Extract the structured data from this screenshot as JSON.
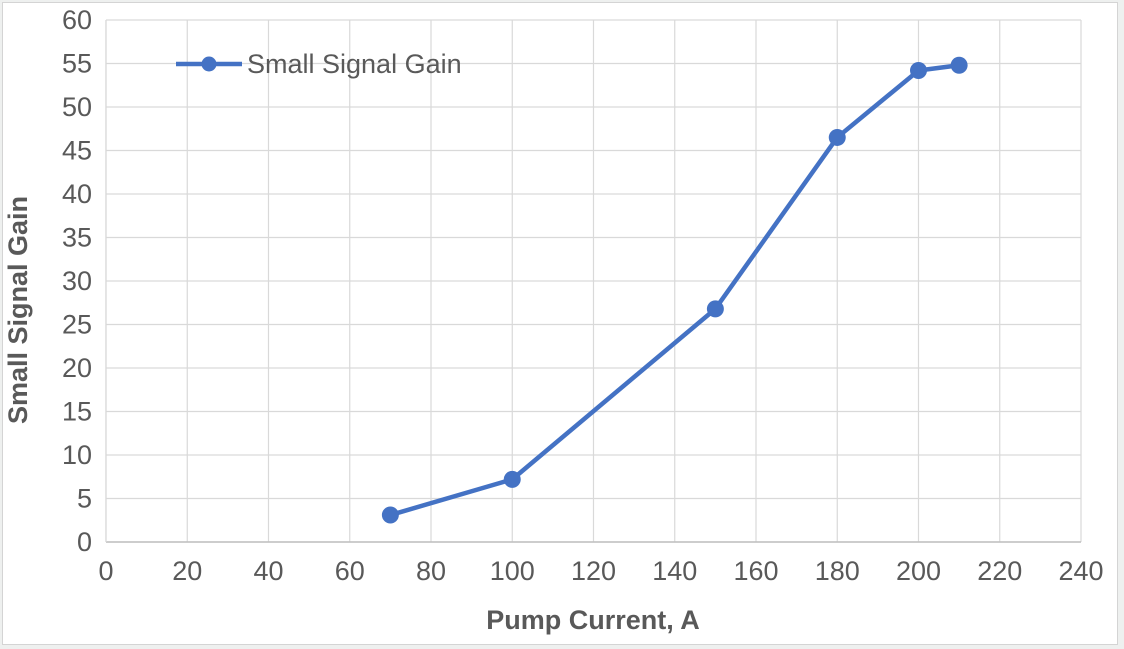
{
  "frame": {
    "background": "#ffffff",
    "border_color": "#d4d4d4",
    "outer_background": "#eef0ef"
  },
  "chart_data": {
    "type": "line",
    "title": "",
    "xlabel": "Pump Current, A",
    "ylabel": "Small Signal Gain",
    "x": [
      70,
      100,
      150,
      180,
      200,
      210
    ],
    "series": [
      {
        "name": "Small Signal Gain",
        "values": [
          3.1,
          7.2,
          26.8,
          46.5,
          54.2,
          54.8
        ],
        "color": "#4472C4",
        "marker": "circle"
      }
    ],
    "xlim": [
      0,
      240
    ],
    "ylim": [
      0,
      60
    ],
    "x_ticks": [
      0,
      20,
      40,
      60,
      80,
      100,
      120,
      140,
      160,
      180,
      200,
      220,
      240
    ],
    "y_ticks": [
      0,
      5,
      10,
      15,
      20,
      25,
      30,
      35,
      40,
      45,
      50,
      55,
      60
    ],
    "grid": true,
    "gridline_color": "#D9D9D9",
    "axis_line_color": "#BFBFBF",
    "tick_label_color": "#595959",
    "axis_title_color": "#595959",
    "legend": {
      "position": "top-left-inside",
      "entries": [
        "Small Signal Gain"
      ]
    }
  }
}
